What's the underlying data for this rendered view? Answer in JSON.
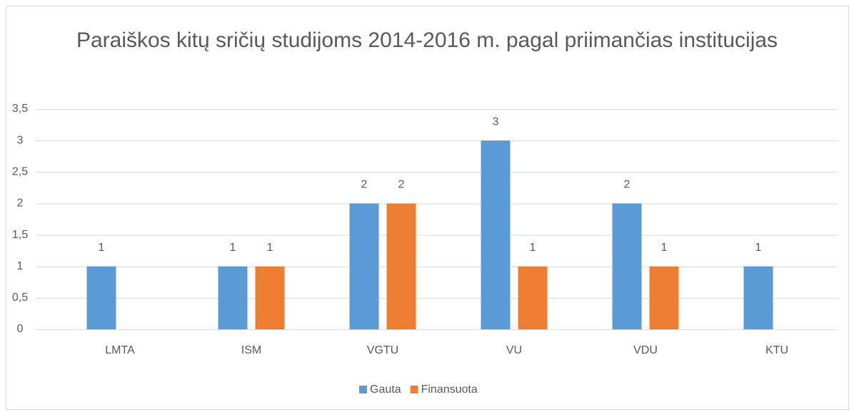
{
  "chart_data": {
    "type": "bar",
    "title": "Paraiškos kitų sričių studijoms 2014-2016 m. pagal priimančias institucijas",
    "categories": [
      "LMTA",
      "ISM",
      "VGTU",
      "VU",
      "VDU",
      "KTU"
    ],
    "series": [
      {
        "name": "Gauta",
        "color": "#5b9bd5",
        "values": [
          1,
          1,
          2,
          3,
          2,
          1
        ]
      },
      {
        "name": "Finansuota",
        "color": "#ed7d31",
        "values": [
          null,
          1,
          2,
          1,
          1,
          null
        ]
      }
    ],
    "ylim": [
      0,
      3.5
    ],
    "yticks": [
      0,
      {
        "value": 0.5,
        "label": "0,5"
      },
      1,
      {
        "value": 1.5,
        "label": "1,5"
      },
      2,
      {
        "value": 2.5,
        "label": "2,5"
      },
      3,
      {
        "value": 3.5,
        "label": "3,5"
      }
    ],
    "grid": true,
    "legend": "bottom",
    "data_labels": true
  }
}
